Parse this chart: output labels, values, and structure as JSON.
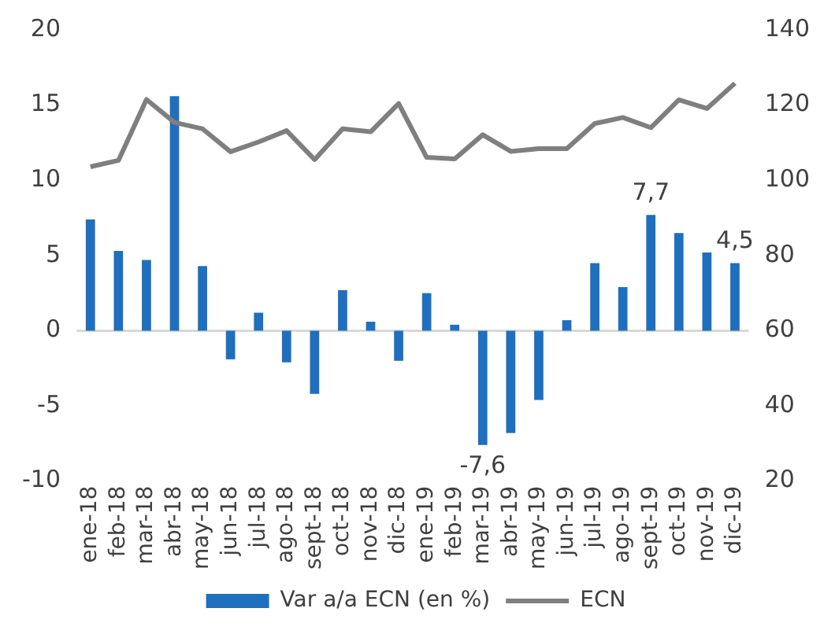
{
  "chart_data": {
    "type": "bar",
    "categories": [
      "ene-18",
      "feb-18",
      "mar-18",
      "abr-18",
      "may-18",
      "jun-18",
      "jul-18",
      "ago-18",
      "sept-18",
      "oct-18",
      "nov-18",
      "dic-18",
      "ene-19",
      "feb-19",
      "mar-19",
      "abr-19",
      "may-19",
      "jun-19",
      "jul-19",
      "ago-19",
      "sept-19",
      "oct-19",
      "nov-19",
      "dic-19"
    ],
    "series": [
      {
        "name": "Var a/a ECN (en %)",
        "color": "#1f6fbf",
        "values": [
          7.4,
          5.3,
          4.7,
          15.6,
          4.3,
          -1.9,
          1.2,
          -2.1,
          -4.2,
          2.7,
          0.6,
          -2.0,
          2.5,
          0.4,
          -7.6,
          -6.8,
          -4.6,
          0.7,
          4.5,
          2.9,
          7.7,
          6.5,
          5.2,
          4.5
        ],
        "value_labels": [
          null,
          null,
          null,
          null,
          null,
          null,
          null,
          null,
          null,
          null,
          null,
          null,
          null,
          null,
          "-7,6",
          null,
          null,
          null,
          null,
          null,
          "7,7",
          null,
          null,
          "4,5"
        ]
      },
      {
        "name": "ECN",
        "type": "line",
        "axis": "y2",
        "color": "#7f7f7f",
        "values": [
          103.6,
          105.3,
          121.5,
          115.4,
          113.7,
          107.6,
          110.2,
          113.2,
          105.5,
          113.7,
          112.9,
          120.4,
          106.1,
          105.7,
          112.1,
          107.7,
          108.4,
          108.4,
          115.1,
          116.7,
          114.0,
          121.4,
          119.1,
          125.8
        ]
      }
    ],
    "ylim": [
      -10,
      20
    ],
    "yticks": [
      -10,
      -5,
      0,
      5,
      10,
      15,
      20
    ],
    "y2lim": [
      20,
      140
    ],
    "y2ticks": [
      20,
      40,
      60,
      80,
      100,
      120,
      140
    ],
    "ref_lines": [
      {
        "axis": "y",
        "value": 0,
        "color": "#d9d9d9"
      }
    ],
    "grid": false,
    "legend": "bottom",
    "marker": "none"
  }
}
